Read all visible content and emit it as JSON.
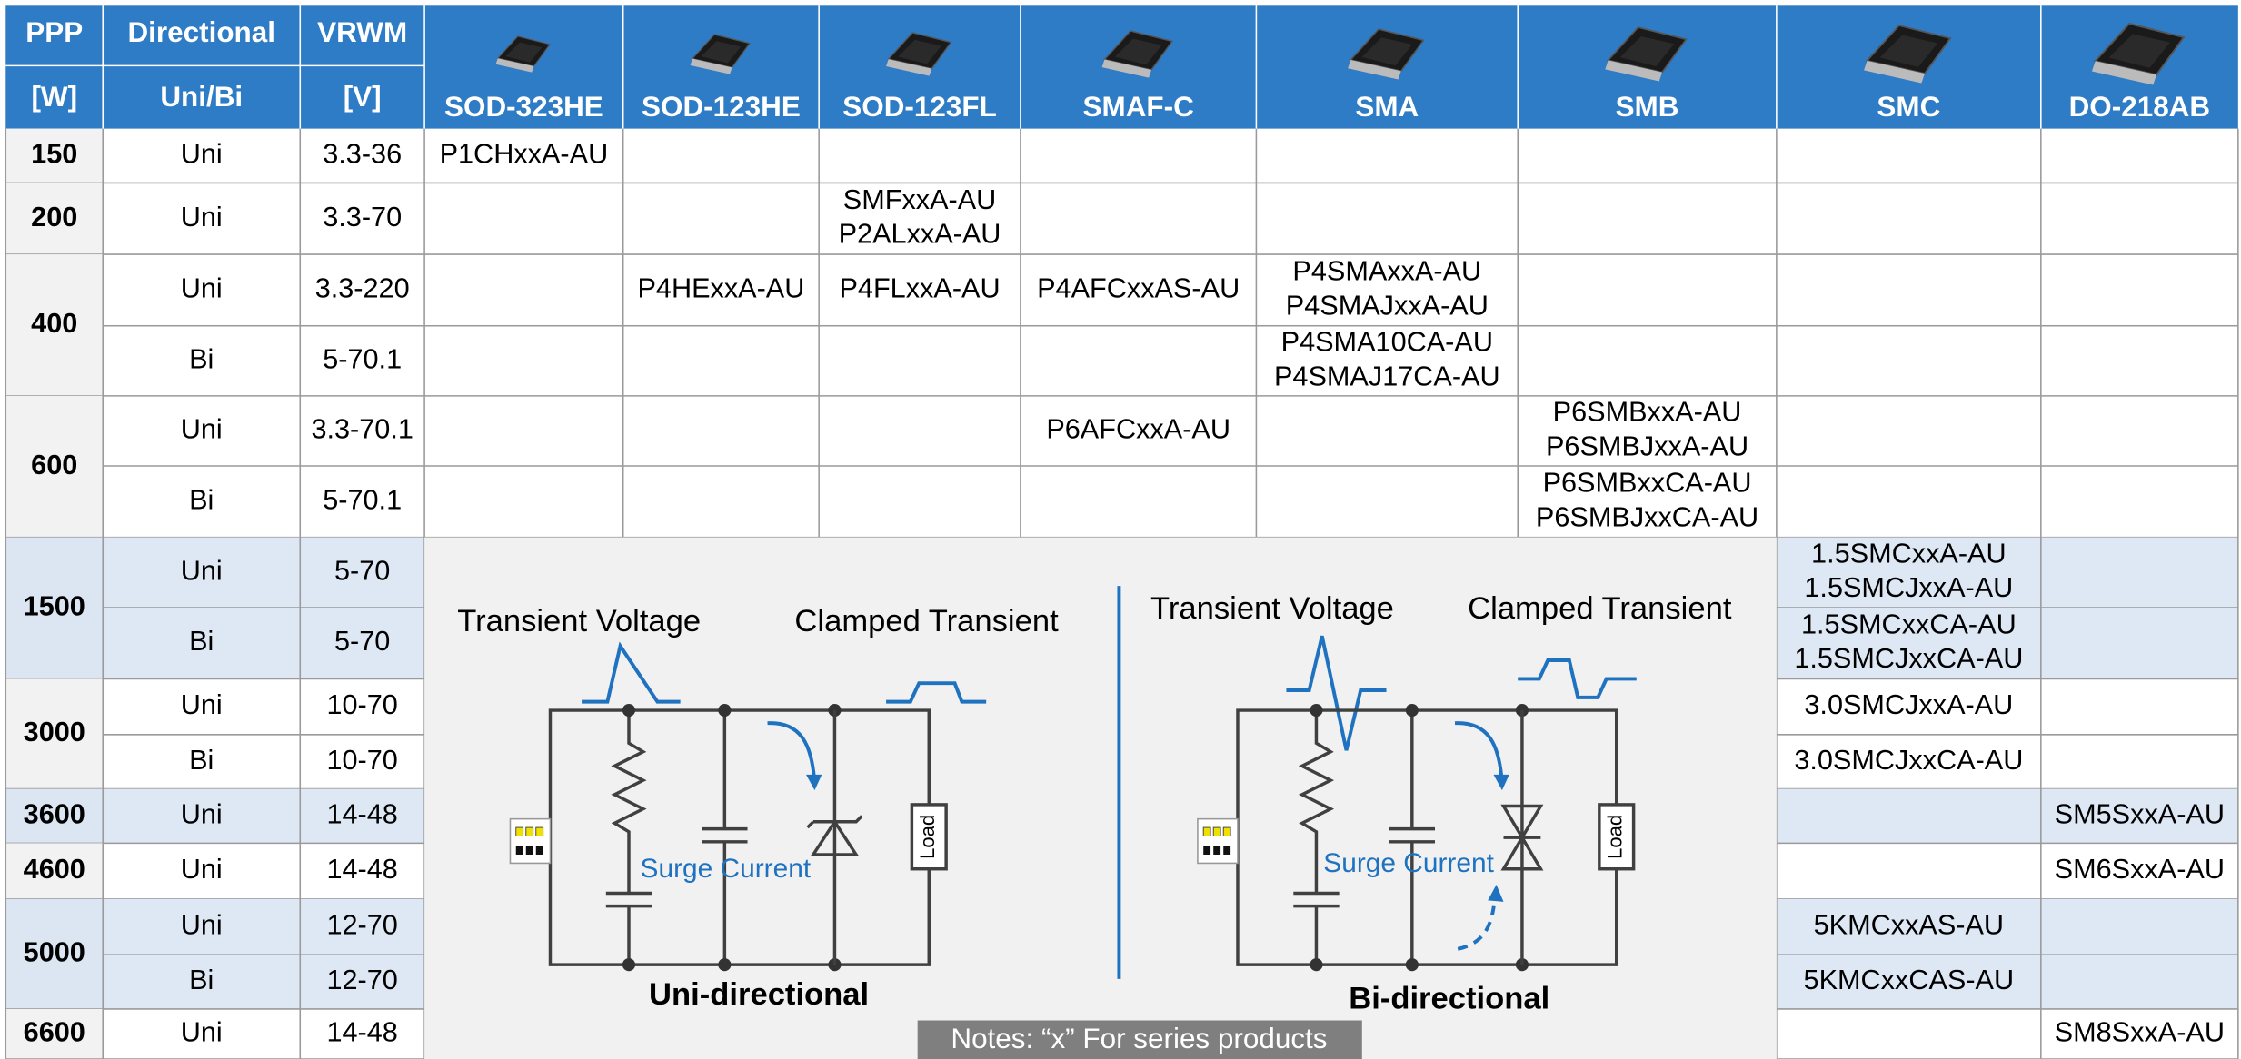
{
  "header": {
    "ppp": "PPP",
    "ppp_unit": "[W]",
    "directional": "Directional",
    "directional_sub": "Uni/Bi",
    "vrwm": "VRWM",
    "vrwm_unit": "[V]",
    "packages": [
      "SOD-323HE",
      "SOD-123HE",
      "SOD-123FL",
      "SMAF-C",
      "SMA",
      "SMB",
      "SMC",
      "DO-218AB"
    ]
  },
  "groups": [
    {
      "ppp": "150",
      "rows": [
        {
          "dir": "Uni",
          "vrwm": "3.3-36",
          "cells": [
            [
              "P1CHxxA-AU"
            ],
            null,
            null,
            null,
            null,
            null,
            null,
            null
          ]
        }
      ]
    },
    {
      "ppp": "200",
      "rows": [
        {
          "dir": "Uni",
          "vrwm": "3.3-70",
          "cells": [
            null,
            null,
            [
              "SMFxxA-AU",
              "P2ALxxA-AU"
            ],
            null,
            null,
            null,
            null,
            null
          ]
        }
      ]
    },
    {
      "ppp": "400",
      "rows": [
        {
          "dir": "Uni",
          "vrwm": "3.3-220",
          "cells": [
            null,
            [
              "P4HExxA-AU"
            ],
            [
              "P4FLxxA-AU"
            ],
            [
              "P4AFCxxAS-AU"
            ],
            [
              "P4SMAxxA-AU",
              "P4SMAJxxA-AU"
            ],
            null,
            null,
            null
          ]
        },
        {
          "dir": "Bi",
          "vrwm": "5-70.1",
          "cells": [
            null,
            null,
            null,
            null,
            [
              "P4SMA10CA-AU",
              "P4SMAJ17CA-AU"
            ],
            null,
            null,
            null
          ]
        }
      ]
    },
    {
      "ppp": "600",
      "rows": [
        {
          "dir": "Uni",
          "vrwm": "3.3-70.1",
          "cells": [
            null,
            null,
            null,
            [
              "P6AFCxxA-AU"
            ],
            null,
            [
              "P6SMBxxA-AU",
              "P6SMBJxxA-AU"
            ],
            null,
            null
          ]
        },
        {
          "dir": "Bi",
          "vrwm": "5-70.1",
          "cells": [
            null,
            null,
            null,
            null,
            null,
            [
              "P6SMBxxCA-AU",
              "P6SMBJxxCA-AU"
            ],
            null,
            null
          ]
        }
      ]
    },
    {
      "ppp": "1500",
      "rows": [
        {
          "dir": "Uni",
          "vrwm": "5-70",
          "cells": [
            null,
            null,
            null,
            null,
            null,
            null,
            [
              "1.5SMCxxA-AU",
              "1.5SMCJxxA-AU"
            ],
            null
          ]
        },
        {
          "dir": "Bi",
          "vrwm": "5-70",
          "cells": [
            null,
            null,
            null,
            null,
            null,
            null,
            [
              "1.5SMCxxCA-AU",
              "1.5SMCJxxCA-AU"
            ],
            null
          ]
        }
      ]
    },
    {
      "ppp": "3000",
      "rows": [
        {
          "dir": "Uni",
          "vrwm": "10-70",
          "cells": [
            null,
            null,
            null,
            null,
            null,
            null,
            [
              "3.0SMCJxxA-AU"
            ],
            null
          ]
        },
        {
          "dir": "Bi",
          "vrwm": "10-70",
          "cells": [
            null,
            null,
            null,
            null,
            null,
            null,
            [
              "3.0SMCJxxCA-AU"
            ],
            null
          ]
        }
      ]
    },
    {
      "ppp": "3600",
      "rows": [
        {
          "dir": "Uni",
          "vrwm": "14-48",
          "cells": [
            null,
            null,
            null,
            null,
            null,
            null,
            null,
            [
              "SM5SxxA-AU"
            ]
          ]
        }
      ]
    },
    {
      "ppp": "4600",
      "rows": [
        {
          "dir": "Uni",
          "vrwm": "14-48",
          "cells": [
            null,
            null,
            null,
            null,
            null,
            null,
            null,
            [
              "SM6SxxA-AU"
            ]
          ]
        }
      ]
    },
    {
      "ppp": "5000",
      "rows": [
        {
          "dir": "Uni",
          "vrwm": "12-70",
          "cells": [
            null,
            null,
            null,
            null,
            null,
            null,
            [
              "5KMCxxAS-AU"
            ],
            null
          ]
        },
        {
          "dir": "Bi",
          "vrwm": "12-70",
          "cells": [
            null,
            null,
            null,
            null,
            null,
            null,
            [
              "5KMCxxCAS-AU"
            ],
            null
          ]
        }
      ]
    },
    {
      "ppp": "6600",
      "rows": [
        {
          "dir": "Uni",
          "vrwm": "14-48",
          "cells": [
            null,
            null,
            null,
            null,
            null,
            null,
            null,
            [
              "SM8SxxA-AU"
            ]
          ]
        }
      ]
    }
  ],
  "diagrams": [
    {
      "title": "Uni-directional",
      "input": "Transient Voltage",
      "output": "Clamped Transient",
      "current": "Surge Current",
      "load": "Load"
    },
    {
      "title": "Bi-directional",
      "input": "Transient Voltage",
      "output": "Clamped Transient",
      "current": "Surge Current",
      "load": "Load"
    }
  ],
  "notes": "Notes:  “x” For series products"
}
